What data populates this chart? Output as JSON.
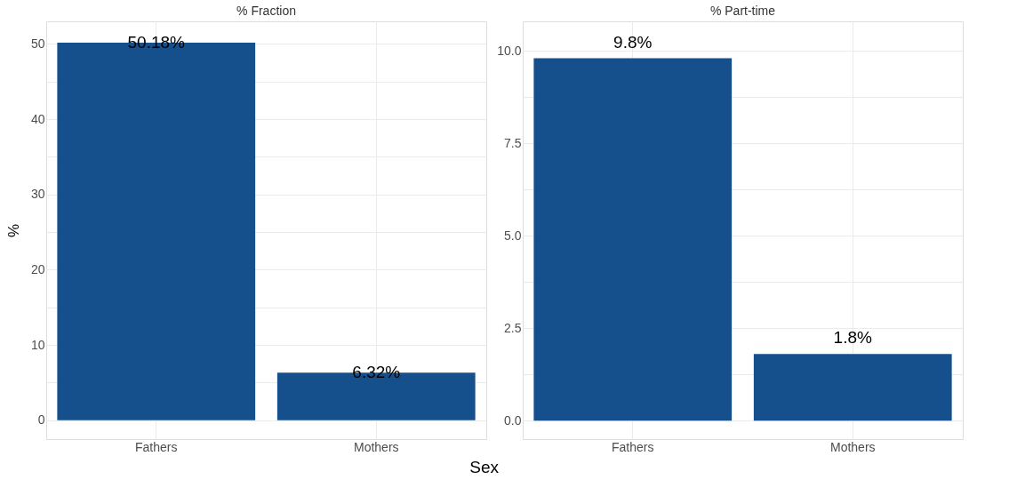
{
  "chart_data": [
    {
      "type": "bar",
      "title": "% Fraction",
      "ylabel": "%",
      "xlabel": "Sex",
      "categories": [
        "Fathers",
        "Mothers"
      ],
      "values": [
        50.18,
        6.32
      ],
      "color": "#154f8c",
      "value_labels": [
        "50.18%",
        "6.32%"
      ],
      "ylim": [
        -2.5,
        53
      ],
      "yticks": [
        0,
        {
          "value": 5,
          "label": null
        },
        10,
        {
          "value": 15,
          "label": null
        },
        20,
        {
          "value": 25,
          "label": null
        },
        30,
        {
          "value": 35,
          "label": null
        },
        40,
        {
          "value": 45,
          "label": null
        },
        50
      ],
      "grid": true
    },
    {
      "type": "bar",
      "title": "% Part-time",
      "categories": [
        "Fathers",
        "Mothers"
      ],
      "values": [
        9.8,
        1.8
      ],
      "color": "#154f8c",
      "value_labels": [
        "9.8%",
        "1.8%"
      ],
      "ylim": [
        -0.5,
        10.8
      ],
      "yticks": [
        {
          "value": 0,
          "label": "0.0"
        },
        {
          "value": 1.25,
          "label": null
        },
        {
          "value": 2.5,
          "label": "2.5"
        },
        {
          "value": 3.75,
          "label": null
        },
        {
          "value": 5,
          "label": "5.0"
        },
        {
          "value": 6.25,
          "label": null
        },
        {
          "value": 7.5,
          "label": "7.5"
        },
        {
          "value": 8.75,
          "label": null
        },
        {
          "value": 10,
          "label": "10.0"
        }
      ],
      "grid": true
    }
  ]
}
